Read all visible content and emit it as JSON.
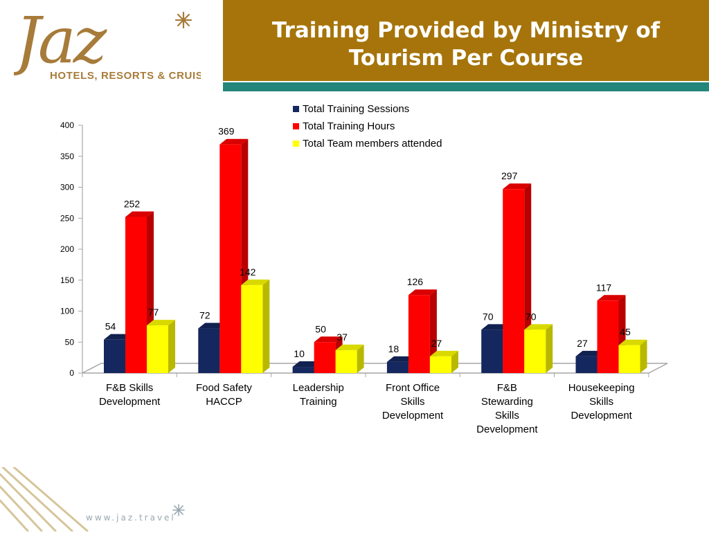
{
  "brand": {
    "logo_wordmark": "Jaz",
    "logo_tagline": "HOTELS, RESORTS & CRUISES",
    "website": "www.jaz.travel"
  },
  "slide": {
    "title_line1": "Training Provided by Ministry of",
    "title_line2": "Tourism Per Course"
  },
  "colors": {
    "title_bar": "#a6740a",
    "accent_bar": "#24857a",
    "logo_brown": "#a77b3a",
    "sessions": "#14275e",
    "hours": "#ff0000",
    "members": "#ffff00"
  },
  "chart_data": {
    "type": "bar",
    "style": "3d-clustered-column",
    "categories": [
      [
        "F&B Skills",
        "Development"
      ],
      [
        "Food Safety",
        "HACCP"
      ],
      [
        "Leadership",
        "Training"
      ],
      [
        "Front Office",
        "Skills",
        "Development"
      ],
      [
        "F&B",
        "Stewarding",
        "Skills",
        "Development"
      ],
      [
        "Housekeeping",
        "Skills",
        "Development"
      ]
    ],
    "series": [
      {
        "name": "Total Training Sessions",
        "values": [
          54,
          72,
          10,
          18,
          70,
          27
        ],
        "color": "#14275e"
      },
      {
        "name": "Total Training Hours",
        "values": [
          252,
          369,
          50,
          126,
          297,
          117
        ],
        "color": "#ff0000"
      },
      {
        "name": "Total Team members attended",
        "values": [
          77,
          142,
          37,
          27,
          70,
          45
        ],
        "color": "#ffff00"
      }
    ],
    "ylim": [
      0,
      400
    ],
    "yticks": [
      0,
      50,
      100,
      150,
      200,
      250,
      300,
      350,
      400
    ],
    "data_labels": true,
    "grid": false,
    "legend": "top-right"
  }
}
